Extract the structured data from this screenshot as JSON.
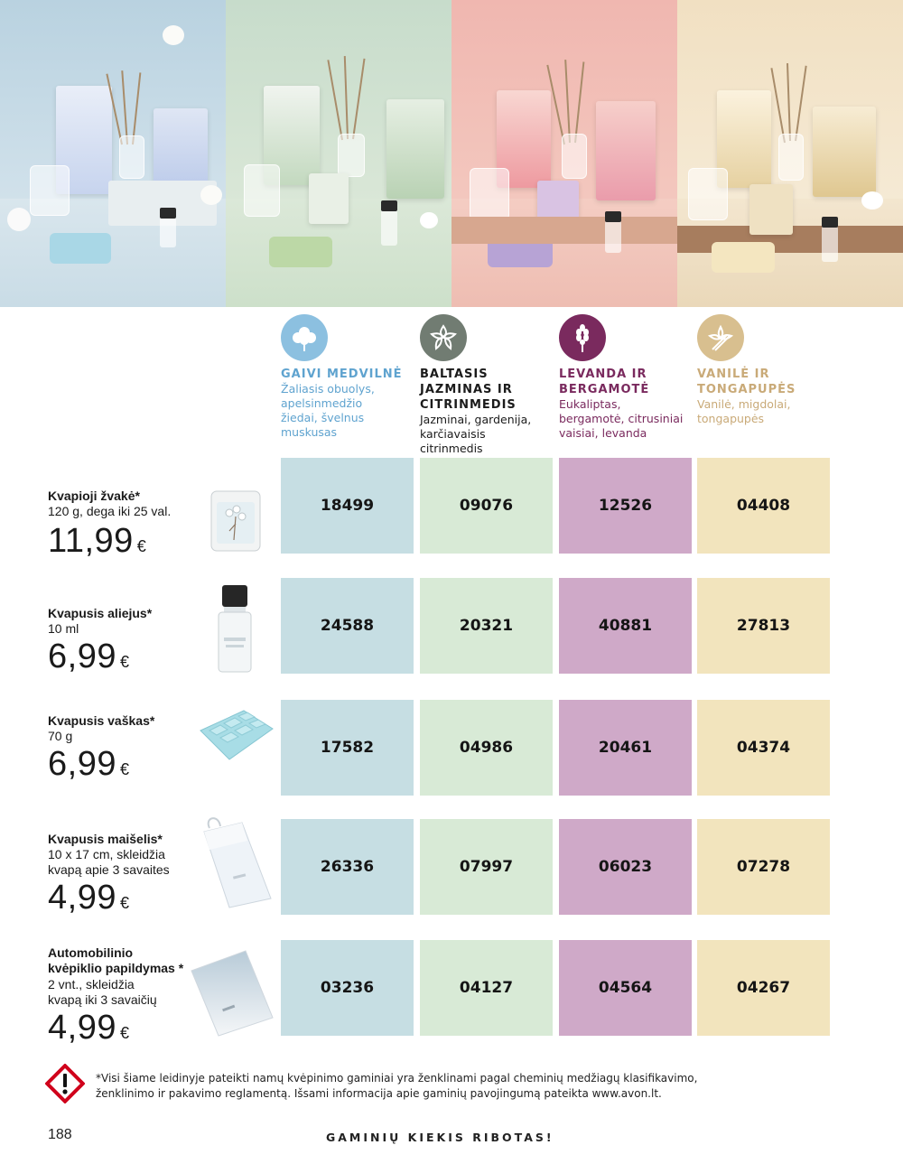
{
  "colors": {
    "cotton": "#c6dee3",
    "jasmine": "#d8ead6",
    "lavender": "#cfa9c8",
    "vanilla": "#f2e4bd",
    "cotton_text": "#5fa3cf",
    "jasmine_text": "#1b1b1b",
    "lavender_text": "#7a2a5e",
    "vanilla_text": "#c9aa78"
  },
  "fragrances": [
    {
      "icon": "cotton-flower-icon",
      "title": "GAIVI MEDVILNĖ",
      "notes": [
        "Žaliasis obuolys,",
        "apelsinmedžio",
        "žiedai, švelnus",
        "muskusas"
      ]
    },
    {
      "icon": "jasmine-flower-icon",
      "title": [
        "BALTASIS",
        "JAZMINAS IR",
        "CITRINMEDIS"
      ],
      "notes": [
        "Jazminai, gardenija,",
        "karčiavaisis",
        "citrinmedis"
      ]
    },
    {
      "icon": "lavender-sprig-icon",
      "title": [
        "LEVANDA IR",
        "BERGAMOTĖ"
      ],
      "notes": [
        "Eukaliptas,",
        "bergamotė, citrusiniai",
        "vaisiai, levanda"
      ]
    },
    {
      "icon": "vanilla-flower-icon",
      "title": [
        "VANILĖ IR",
        "TONGAPUPĖS"
      ],
      "notes": [
        "Vanilė, migdolai,",
        "tongapupės"
      ]
    }
  ],
  "products": [
    {
      "name": "Kvapioji žvakė*",
      "desc": [
        "120 g, dega iki 25 val."
      ],
      "price": "11,99",
      "currency": "€",
      "codes": [
        "18499",
        "09076",
        "12526",
        "04408"
      ]
    },
    {
      "name": "Kvapusis aliejus*",
      "desc": [
        "10 ml"
      ],
      "price": "6,99",
      "currency": "€",
      "codes": [
        "24588",
        "20321",
        "40881",
        "27813"
      ]
    },
    {
      "name": "Kvapusis vaškas*",
      "desc": [
        "70 g"
      ],
      "price": "6,99",
      "currency": "€",
      "codes": [
        "17582",
        "04986",
        "20461",
        "04374"
      ]
    },
    {
      "name": "Kvapusis maišelis*",
      "desc": [
        "10 x 17 cm, skleidžia",
        "kvapą apie 3 savaites"
      ],
      "price": "4,99",
      "currency": "€",
      "codes": [
        "26336",
        "07997",
        "06023",
        "07278"
      ]
    },
    {
      "name": [
        "Automobilinio",
        "kvėpiklio papildymas *"
      ],
      "desc": [
        "2 vnt., skleidžia",
        "kvapą iki 3 savaičių"
      ],
      "price": "4,99",
      "currency": "€",
      "codes": [
        "03236",
        "04127",
        "04564",
        "04267"
      ]
    }
  ],
  "footer": {
    "disclaimer": [
      "*Visi šiame leidinyje pateikti namų kvėpinimo gaminiai yra ženklinami pagal cheminių medžiagų klasifikavimo,",
      "ženklinimo ir pakavimo reglamentą. Išsami informacija apie gaminių pavojingumą pateikta www.avon.lt."
    ],
    "page_number": "188",
    "limited_notice": "GAMINIŲ KIEKIS RIBOTAS!",
    "warning_icon": "hazard-exclamation-icon"
  }
}
